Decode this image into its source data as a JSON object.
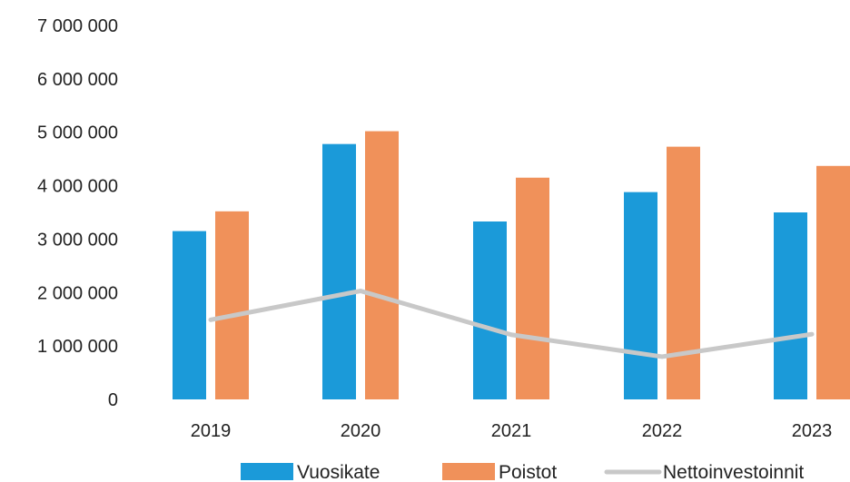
{
  "chart_data": {
    "type": "bar",
    "categories": [
      "2019",
      "2020",
      "2021",
      "2022",
      "2023"
    ],
    "series": [
      {
        "name": "Vuosikate",
        "kind": "bar",
        "color": "#1b9ad9",
        "values": [
          3150000,
          4780000,
          3330000,
          3880000,
          3500000
        ]
      },
      {
        "name": "Poistot",
        "kind": "bar",
        "color": "#f0915a",
        "values": [
          3520000,
          5020000,
          4150000,
          4730000,
          4370000
        ]
      },
      {
        "name": "Nettoinvestoinnit",
        "kind": "line",
        "color": "#c8c8c8",
        "values": [
          1490000,
          2030000,
          1210000,
          800000,
          1220000
        ]
      }
    ],
    "y_ticks": [
      "0",
      "1 000 000",
      "2 000 000",
      "3 000 000",
      "4 000 000",
      "5 000 000",
      "6 000 000",
      "7 000 000"
    ],
    "ylim": [
      0,
      7000000
    ],
    "grid": false,
    "legend_position": "bottom"
  }
}
